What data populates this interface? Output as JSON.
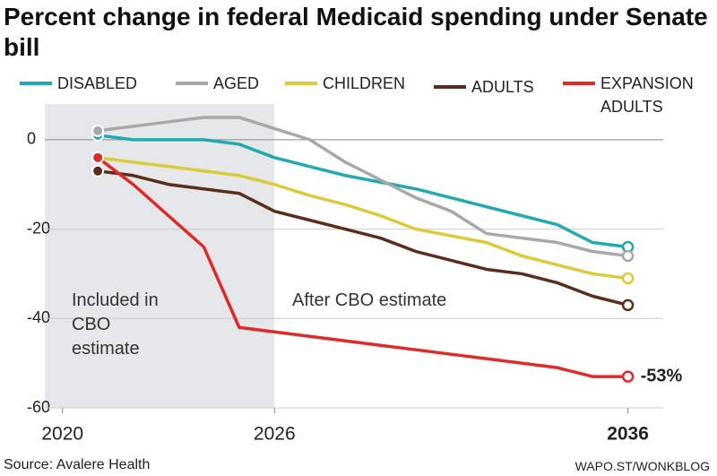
{
  "chart_data": {
    "type": "line",
    "title": "Percent change in federal Medicaid spending under Senate bill",
    "x": [
      2021,
      2022,
      2023,
      2024,
      2025,
      2026,
      2027,
      2028,
      2029,
      2030,
      2031,
      2032,
      2033,
      2034,
      2035,
      2036
    ],
    "series": [
      {
        "name": "DISABLED",
        "color": "#22aab0",
        "values": [
          1,
          0,
          0,
          0,
          -1,
          -4,
          -6,
          -8,
          -9.5,
          -11,
          -13,
          -15,
          -17,
          -19,
          -23,
          -24
        ]
      },
      {
        "name": "AGED",
        "color": "#a8a8a8",
        "values": [
          2,
          3,
          4,
          5,
          5,
          2.5,
          0,
          -5,
          -9,
          -13,
          -16,
          -21,
          -22,
          -23,
          -25,
          -26
        ]
      },
      {
        "name": "CHILDREN",
        "color": "#d8cc3a",
        "values": [
          -4,
          -5,
          -6,
          -7,
          -8,
          -10,
          -12.5,
          -14.5,
          -17,
          -20,
          -21.5,
          -23,
          -26,
          -28,
          -30,
          -31
        ]
      },
      {
        "name": "ADULTS",
        "color": "#5a2e1e",
        "values": [
          -7,
          -8,
          -10,
          -11,
          -12,
          -16,
          -18,
          -20,
          -22,
          -25,
          -27,
          -29,
          -30,
          -32,
          -35,
          -37
        ]
      },
      {
        "name": "EXPANSION ADULTS",
        "color": "#e02a2a",
        "values": [
          -4,
          -10,
          -17,
          -24,
          -42,
          -43,
          -44,
          -45,
          -46,
          -47,
          -48,
          -49,
          -50,
          -51,
          -53,
          -53
        ],
        "value_labels": [
          null,
          null,
          null,
          null,
          null,
          null,
          null,
          null,
          null,
          null,
          null,
          null,
          null,
          null,
          null,
          "-53%"
        ]
      }
    ],
    "xlim": [
      2019.5,
      2037
    ],
    "xticks": [
      2020,
      2026,
      2036
    ],
    "ylim": [
      -60,
      8
    ],
    "yticks": [
      0,
      -20,
      -40,
      -60
    ],
    "grid": true,
    "annotations": [
      "Included in CBO estimate",
      "After CBO estimate"
    ],
    "source": "Source: Avalere Health",
    "credit": "WAPO.ST/WONKBLOG"
  }
}
